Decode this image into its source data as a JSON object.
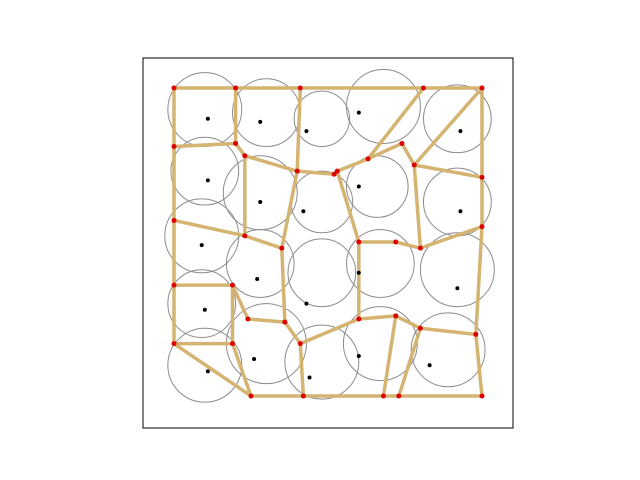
{
  "diagram": {
    "type": "voronoi",
    "colors": {
      "edge": "#d4b470",
      "vertex": "#dd0000",
      "site": "#000000",
      "circle": "#8c8c8c",
      "frame": "#000000"
    },
    "domain": {
      "x": [
        0,
        1
      ],
      "y": [
        0,
        1
      ]
    },
    "vertices": [
      [
        0.0,
        1.0
      ],
      [
        0.2,
        1.0
      ],
      [
        0.41,
        1.0
      ],
      [
        0.81,
        1.0
      ],
      [
        1.0,
        1.0
      ],
      [
        0.0,
        0.81
      ],
      [
        0.2,
        0.82
      ],
      [
        0.23,
        0.78
      ],
      [
        0.4,
        0.73
      ],
      [
        0.52,
        0.72
      ],
      [
        0.74,
        0.82
      ],
      [
        0.63,
        0.77
      ],
      [
        0.78,
        0.75
      ],
      [
        0.53,
        0.73
      ],
      [
        1.0,
        0.71
      ],
      [
        0.0,
        0.57
      ],
      [
        0.23,
        0.52
      ],
      [
        0.35,
        0.48
      ],
      [
        0.6,
        0.5
      ],
      [
        0.72,
        0.5
      ],
      [
        0.8,
        0.48
      ],
      [
        1.0,
        0.55
      ],
      [
        0.0,
        0.36
      ],
      [
        0.19,
        0.36
      ],
      [
        0.24,
        0.25
      ],
      [
        0.36,
        0.24
      ],
      [
        0.41,
        0.17
      ],
      [
        0.6,
        0.25
      ],
      [
        0.72,
        0.26
      ],
      [
        0.8,
        0.22
      ],
      [
        0.98,
        0.2
      ],
      [
        0.0,
        0.17
      ],
      [
        0.19,
        0.17
      ],
      [
        0.25,
        0.0
      ],
      [
        0.42,
        0.0
      ],
      [
        0.68,
        0.0
      ],
      [
        0.73,
        0.0
      ],
      [
        1.0,
        0.0
      ]
    ],
    "edges": [
      [
        0,
        1
      ],
      [
        1,
        2
      ],
      [
        2,
        3
      ],
      [
        3,
        4
      ],
      [
        4,
        14
      ],
      [
        14,
        21
      ],
      [
        21,
        30
      ],
      [
        30,
        37
      ],
      [
        37,
        36
      ],
      [
        36,
        35
      ],
      [
        35,
        34
      ],
      [
        34,
        33
      ],
      [
        33,
        31
      ],
      [
        31,
        22
      ],
      [
        22,
        15
      ],
      [
        15,
        5
      ],
      [
        5,
        0
      ],
      [
        5,
        6
      ],
      [
        6,
        1
      ],
      [
        6,
        7
      ],
      [
        7,
        16
      ],
      [
        7,
        8
      ],
      [
        8,
        2
      ],
      [
        8,
        9
      ],
      [
        9,
        13
      ],
      [
        13,
        11
      ],
      [
        11,
        3
      ],
      [
        11,
        10
      ],
      [
        10,
        12
      ],
      [
        12,
        4
      ],
      [
        12,
        14
      ],
      [
        15,
        16
      ],
      [
        16,
        17
      ],
      [
        17,
        8
      ],
      [
        13,
        18
      ],
      [
        18,
        19
      ],
      [
        19,
        20
      ],
      [
        20,
        12
      ],
      [
        20,
        21
      ],
      [
        22,
        23
      ],
      [
        23,
        24
      ],
      [
        24,
        25
      ],
      [
        25,
        17
      ],
      [
        25,
        26
      ],
      [
        26,
        34
      ],
      [
        18,
        27
      ],
      [
        27,
        28
      ],
      [
        28,
        29
      ],
      [
        29,
        30
      ],
      [
        29,
        36
      ],
      [
        28,
        35
      ],
      [
        27,
        26
      ],
      [
        31,
        32
      ],
      [
        32,
        23
      ],
      [
        32,
        33
      ]
    ],
    "sites": [
      [
        0.11,
        0.9
      ],
      [
        0.28,
        0.89
      ],
      [
        0.43,
        0.86
      ],
      [
        0.6,
        0.92
      ],
      [
        0.93,
        0.86
      ],
      [
        0.11,
        0.7
      ],
      [
        0.28,
        0.63
      ],
      [
        0.42,
        0.6
      ],
      [
        0.6,
        0.68
      ],
      [
        0.93,
        0.6
      ],
      [
        0.09,
        0.49
      ],
      [
        0.27,
        0.38
      ],
      [
        0.43,
        0.3
      ],
      [
        0.6,
        0.4
      ],
      [
        0.92,
        0.35
      ],
      [
        0.1,
        0.28
      ],
      [
        0.26,
        0.12
      ],
      [
        0.44,
        0.06
      ],
      [
        0.6,
        0.13
      ],
      [
        0.83,
        0.1
      ],
      [
        0.11,
        0.08
      ]
    ],
    "circles": [
      {
        "c": [
          0.1,
          0.93
        ],
        "r": 0.12
      },
      {
        "c": [
          0.3,
          0.92
        ],
        "r": 0.11
      },
      {
        "c": [
          0.48,
          0.9
        ],
        "r": 0.09
      },
      {
        "c": [
          0.68,
          0.94
        ],
        "r": 0.12
      },
      {
        "c": [
          0.92,
          0.9
        ],
        "r": 0.11
      },
      {
        "c": [
          0.1,
          0.73
        ],
        "r": 0.11
      },
      {
        "c": [
          0.28,
          0.66
        ],
        "r": 0.12
      },
      {
        "c": [
          0.48,
          0.63
        ],
        "r": 0.1
      },
      {
        "c": [
          0.66,
          0.68
        ],
        "r": 0.1
      },
      {
        "c": [
          0.92,
          0.63
        ],
        "r": 0.11
      },
      {
        "c": [
          0.09,
          0.52
        ],
        "r": 0.12
      },
      {
        "c": [
          0.28,
          0.43
        ],
        "r": 0.11
      },
      {
        "c": [
          0.48,
          0.4
        ],
        "r": 0.11
      },
      {
        "c": [
          0.67,
          0.43
        ],
        "r": 0.11
      },
      {
        "c": [
          0.92,
          0.41
        ],
        "r": 0.12
      },
      {
        "c": [
          0.09,
          0.3
        ],
        "r": 0.11
      },
      {
        "c": [
          0.3,
          0.17
        ],
        "r": 0.13
      },
      {
        "c": [
          0.48,
          0.11
        ],
        "r": 0.12
      },
      {
        "c": [
          0.67,
          0.17
        ],
        "r": 0.12
      },
      {
        "c": [
          0.89,
          0.15
        ],
        "r": 0.12
      },
      {
        "c": [
          0.1,
          0.1
        ],
        "r": 0.12
      }
    ]
  }
}
